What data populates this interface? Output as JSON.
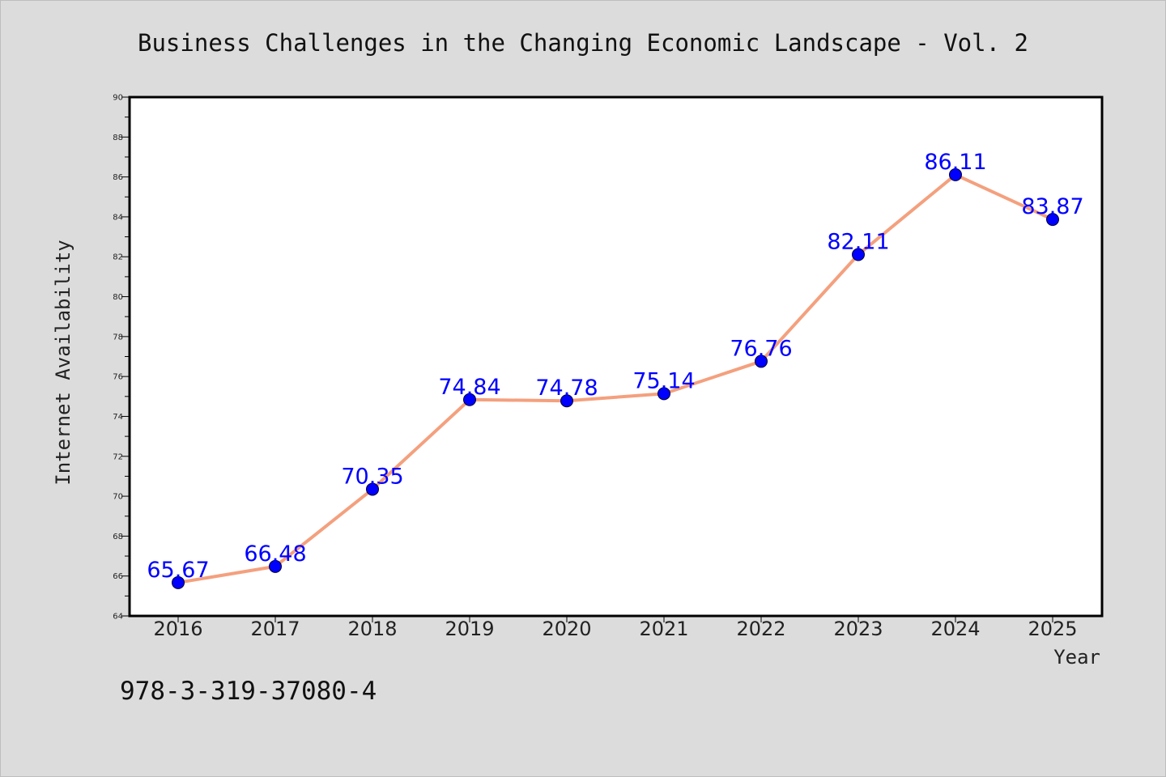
{
  "chart_data": {
    "type": "line",
    "title": "Business Challenges in the Changing Economic Landscape - Vol. 2",
    "xlabel": "Year",
    "ylabel": "Internet Availability",
    "categories": [
      "2016",
      "2017",
      "2018",
      "2019",
      "2020",
      "2021",
      "2022",
      "2023",
      "2024",
      "2025"
    ],
    "series": [
      {
        "values": [
          65.67,
          66.48,
          70.35,
          74.84,
          74.78,
          75.14,
          76.76,
          82.11,
          86.11,
          83.87
        ],
        "data_labels": [
          "65.67",
          "66.48",
          "70.35",
          "74.84",
          "74.78",
          "75.14",
          "76.76",
          "82.11",
          "86.11",
          "83.87"
        ]
      }
    ],
    "ylim": [
      64,
      90
    ],
    "yticks": [
      "64",
      "66",
      "68",
      "70",
      "72",
      "74",
      "76",
      "78",
      "80",
      "82",
      "84",
      "86",
      "88",
      "90"
    ],
    "grid": false,
    "legend": "none",
    "line_color": "#f4a07e",
    "marker_color": "#0000ff",
    "label_color": "#0000ff",
    "background_color": "#dcdcdc",
    "plot_background_color": "#ffffff"
  },
  "footer": {
    "isbn": "978-3-319-37080-4"
  }
}
